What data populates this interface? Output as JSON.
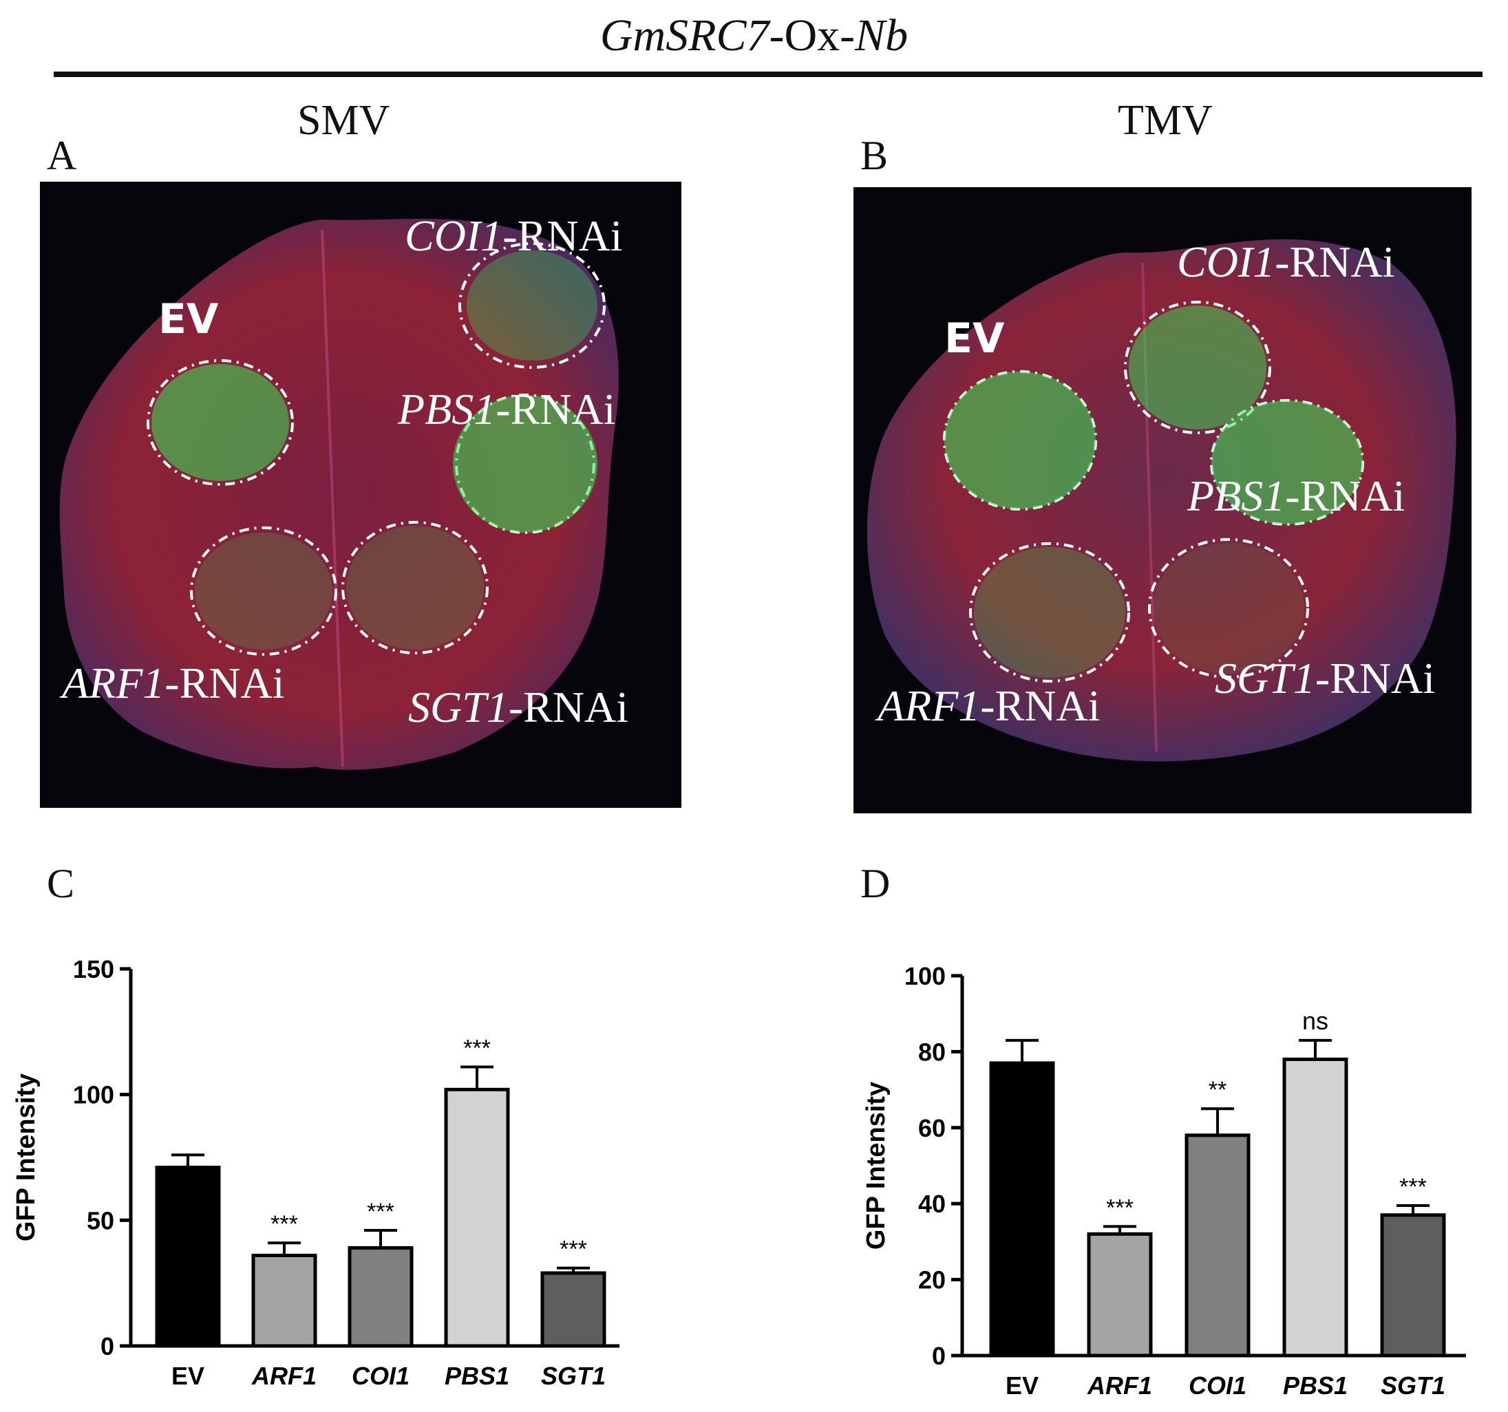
{
  "header": {
    "gene": "GmSRC7",
    "middle": "-Ox-",
    "species": "Nb"
  },
  "sections": {
    "left": "SMV",
    "right": "TMV"
  },
  "panel_letters": {
    "a": "A",
    "b": "B",
    "c": "C",
    "d": "D"
  },
  "leaf_panels": {
    "a": {
      "ev": "EV",
      "labels": [
        {
          "gene": "COI1",
          "suffix": "-RNAi"
        },
        {
          "gene": "PBS1",
          "suffix": "-RNAi"
        },
        {
          "gene": "ARF1",
          "suffix": "-RNAi"
        },
        {
          "gene": "SGT1",
          "suffix": "-RNAi"
        }
      ]
    },
    "b": {
      "ev": "EV",
      "labels": [
        {
          "gene": "COI1",
          "suffix": "-RNAi"
        },
        {
          "gene": "PBS1",
          "suffix": "-RNAi"
        },
        {
          "gene": "ARF1",
          "suffix": "-RNAi"
        },
        {
          "gene": "SGT1",
          "suffix": "-RNAi"
        }
      ]
    }
  },
  "colors": {
    "leaf_red": "#8a2038",
    "leaf_purple": "#3a2858",
    "gfp_green": "#36e35a",
    "background_dark": "#06050c",
    "bar_fills": [
      "#000000",
      "#a3a3a3",
      "#808080",
      "#d2d2d2",
      "#5e5e5e"
    ]
  },
  "chart_data": [
    {
      "panel": "C",
      "type": "bar",
      "categories": [
        "EV",
        "ARF1",
        "COI1",
        "PBS1",
        "SGT1"
      ],
      "italic_categories": [
        false,
        true,
        true,
        true,
        true
      ],
      "values": [
        71,
        36,
        39,
        102,
        29
      ],
      "errors": [
        5,
        5,
        7,
        9,
        2
      ],
      "significance": [
        "",
        "***",
        "***",
        "***",
        "***"
      ],
      "ylabel": "GFP Intensity",
      "xlabel": "",
      "ylim": [
        0,
        150
      ],
      "yticks": [
        0,
        50,
        100,
        150
      ],
      "grid": false
    },
    {
      "panel": "D",
      "type": "bar",
      "categories": [
        "EV",
        "ARF1",
        "COI1",
        "PBS1",
        "SGT1"
      ],
      "italic_categories": [
        false,
        true,
        true,
        true,
        true
      ],
      "values": [
        77,
        32,
        58,
        78,
        37
      ],
      "errors": [
        6,
        2,
        7,
        5,
        2.5
      ],
      "significance": [
        "",
        "***",
        "**",
        "ns",
        "***"
      ],
      "ylabel": "GFP Intensity",
      "xlabel": "",
      "ylim": [
        0,
        100
      ],
      "yticks": [
        0,
        20,
        40,
        60,
        80,
        100
      ],
      "grid": false
    }
  ]
}
